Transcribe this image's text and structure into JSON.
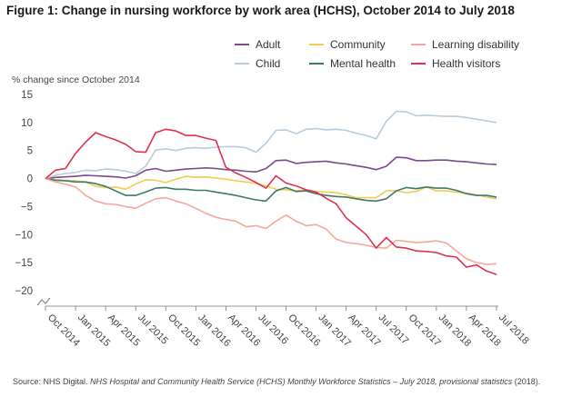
{
  "figure": {
    "title": "Figure 1: Change in nursing workforce by work area (HCHS), October 2014 to July 2018",
    "source_prefix": "Source: NHS Digital. ",
    "source_italic": "NHS Hospital and Community Health Service (HCHS) Monthly Workforce Statistics – July 2018, provisional statistics",
    "source_suffix": " (2018)."
  },
  "chart_data": {
    "type": "line",
    "title": "Figure 1: Change in nursing workforce by work area (HCHS), October 2014 to July 2018",
    "xlabel": "",
    "ylabel": "% change since October 2014",
    "ylim": [
      -20,
      15
    ],
    "yticks": [
      -20,
      -15,
      -10,
      -5,
      0,
      5,
      10,
      15
    ],
    "grid": false,
    "legend_position": "top-right",
    "x": [
      "Oct 2014",
      "Nov 2014",
      "Dec 2014",
      "Jan 2015",
      "Feb 2015",
      "Mar 2015",
      "Apr 2015",
      "May 2015",
      "Jun 2015",
      "Jul 2015",
      "Aug 2015",
      "Sep 2015",
      "Oct 2015",
      "Nov 2015",
      "Dec 2015",
      "Jan 2016",
      "Feb 2016",
      "Mar 2016",
      "Apr 2016",
      "May 2016",
      "Jun 2016",
      "Jul 2016",
      "Aug 2016",
      "Sep 2016",
      "Oct 2016",
      "Nov 2016",
      "Dec 2016",
      "Jan 2017",
      "Feb 2017",
      "Mar 2017",
      "Apr 2017",
      "May 2017",
      "Jun 2017",
      "Jul 2017",
      "Aug 2017",
      "Sep 2017",
      "Oct 2017",
      "Nov 2017",
      "Dec 2017",
      "Jan 2018",
      "Feb 2018",
      "Mar 2018",
      "Apr 2018",
      "May 2018",
      "Jun 2018",
      "Jul 2018"
    ],
    "xtick_labels": [
      "Oct 2014",
      "Jan 2015",
      "Apr 2015",
      "Jul 2015",
      "Oct 2015",
      "Jan 2016",
      "Apr 2016",
      "Jul 2016",
      "Oct 2016",
      "Jan 2017",
      "Apr 2017",
      "Jul 2017",
      "Oct 2017",
      "Jan 2018",
      "Apr 2018",
      "Jul 2018"
    ],
    "series": [
      {
        "name": "Adult",
        "color": "#7b4a8c",
        "values": [
          0,
          0.2,
          0.3,
          0.4,
          0.6,
          0.5,
          0.4,
          0.3,
          0.1,
          0.5,
          1.5,
          1.8,
          1.3,
          1.5,
          1.7,
          1.8,
          1.9,
          1.8,
          1.6,
          1.5,
          1.3,
          1.2,
          1.8,
          3.2,
          3.3,
          2.7,
          2.9,
          3.0,
          3.1,
          2.8,
          2.6,
          2.3,
          2.0,
          1.6,
          2.2,
          3.8,
          3.7,
          3.2,
          3.2,
          3.3,
          3.3,
          3.1,
          3.0,
          2.8,
          2.6,
          2.5
        ]
      },
      {
        "name": "Child",
        "color": "#b8ccd9",
        "values": [
          0,
          0.6,
          0.9,
          1.1,
          1.5,
          1.4,
          1.7,
          1.6,
          1.3,
          0.9,
          2.2,
          5.1,
          5.3,
          5.0,
          5.4,
          5.5,
          5.4,
          5.6,
          5.7,
          5.7,
          5.5,
          4.7,
          6.3,
          8.6,
          8.7,
          8.0,
          8.8,
          8.9,
          8.7,
          8.8,
          8.6,
          8.1,
          7.7,
          7.1,
          10.2,
          12.0,
          11.9,
          11.2,
          11.3,
          11.2,
          11.1,
          11.1,
          10.9,
          10.6,
          10.3,
          10.0
        ]
      },
      {
        "name": "Community",
        "color": "#f0cd52",
        "values": [
          0,
          -0.2,
          -0.3,
          -0.4,
          -0.6,
          -1.4,
          -1.6,
          -1.5,
          -1.9,
          -1.0,
          -0.2,
          -0.3,
          -0.7,
          -0.1,
          0.4,
          0.2,
          0.3,
          0.1,
          -0.1,
          -0.4,
          -0.6,
          -0.9,
          -1.3,
          -1.9,
          -2.0,
          -2.2,
          -2.0,
          -2.3,
          -2.4,
          -2.5,
          -2.9,
          -3.4,
          -3.4,
          -3.4,
          -2.2,
          -2.2,
          -2.5,
          -2.3,
          -1.5,
          -2.2,
          -2.2,
          -2.4,
          -2.6,
          -2.9,
          -3.3,
          -3.6
        ]
      },
      {
        "name": "Mental health",
        "color": "#3d7a6a",
        "values": [
          0,
          -0.3,
          -0.4,
          -0.6,
          -0.6,
          -0.9,
          -1.4,
          -2.2,
          -3.0,
          -3.0,
          -2.4,
          -1.7,
          -1.6,
          -1.9,
          -1.9,
          -2.1,
          -2.1,
          -2.4,
          -2.7,
          -3.0,
          -3.4,
          -3.8,
          -4.0,
          -2.2,
          -1.6,
          -2.3,
          -2.2,
          -2.7,
          -3.0,
          -3.2,
          -3.3,
          -3.6,
          -3.9,
          -4.0,
          -3.6,
          -2.2,
          -1.6,
          -1.8,
          -1.5,
          -1.7,
          -1.7,
          -2.1,
          -2.7,
          -3.0,
          -3.0,
          -3.3
        ]
      },
      {
        "name": "Learning disability",
        "color": "#f4a899",
        "values": [
          0,
          -0.6,
          -1.0,
          -1.5,
          -3.0,
          -4.0,
          -4.5,
          -4.6,
          -5.0,
          -5.3,
          -4.4,
          -3.6,
          -3.4,
          -4.0,
          -4.5,
          -5.3,
          -6.2,
          -6.9,
          -7.3,
          -7.6,
          -8.6,
          -8.4,
          -8.9,
          -7.6,
          -6.5,
          -7.6,
          -8.4,
          -8.2,
          -9.0,
          -10.8,
          -11.4,
          -11.6,
          -11.9,
          -12.3,
          -12.4,
          -11.0,
          -11.2,
          -11.4,
          -11.3,
          -11.1,
          -11.5,
          -12.9,
          -14.3,
          -15.0,
          -15.3,
          -15.2
        ]
      },
      {
        "name": "Health visitors",
        "color": "#e0304f",
        "values": [
          0,
          1.5,
          1.8,
          4.5,
          6.5,
          8.2,
          7.5,
          6.9,
          6.1,
          4.8,
          4.7,
          8.2,
          8.8,
          8.5,
          7.7,
          7.7,
          7.2,
          6.8,
          2.0,
          1.0,
          0.2,
          -0.7,
          -1.7,
          0.5,
          -0.8,
          -1.3,
          -2.0,
          -2.4,
          -3.5,
          -4.5,
          -7.0,
          -8.5,
          -10.0,
          -12.4,
          -10.5,
          -12.2,
          -12.4,
          -12.9,
          -13.0,
          -13.2,
          -13.8,
          -14.0,
          -15.8,
          -15.4,
          -16.5,
          -17.1
        ]
      }
    ]
  }
}
